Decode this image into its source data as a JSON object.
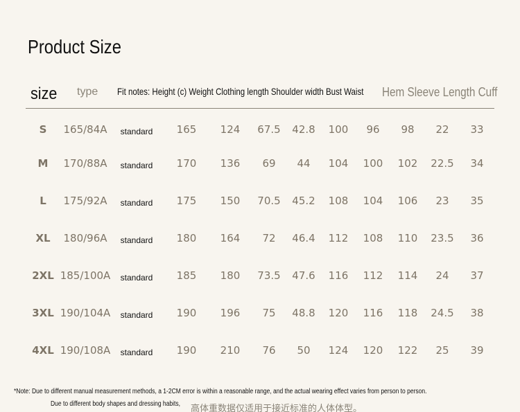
{
  "header": {
    "title": "Product Size"
  },
  "table": {
    "columns": [
      "size",
      "type",
      "Fit notes: Height (c) Weight Clothing length Shoulder width Bust Waist",
      "Hem Sleeve Length Cuff"
    ],
    "rows": [
      [
        "S",
        "165/84A",
        "standard",
        165,
        124,
        67.5,
        42.8,
        100,
        96,
        98,
        22,
        33
      ],
      [
        "M",
        "170/88A",
        "standard",
        170,
        136,
        69,
        44,
        104,
        100,
        102,
        22.5,
        34
      ],
      [
        "L",
        "175/92A",
        "standard",
        175,
        150,
        70.5,
        45.2,
        108,
        104,
        106,
        23,
        35
      ],
      [
        "XL",
        "180/96A",
        "standard",
        180,
        164,
        72,
        46.4,
        112,
        108,
        110,
        23.5,
        36
      ],
      [
        "2XL",
        "185/100A",
        "standard",
        185,
        180,
        73.5,
        47.6,
        116,
        112,
        114,
        24,
        37
      ],
      [
        "3XL",
        "190/104A",
        "standard",
        190,
        196,
        75,
        48.8,
        120,
        116,
        118,
        24.5,
        38
      ],
      [
        "4XL",
        "190/108A",
        "standard",
        190,
        210,
        76,
        50,
        124,
        120,
        122,
        25,
        39
      ]
    ]
  },
  "notes": [
    "*Note: Due to different manual measurement methods, a 1-2CM error is within a reasonable range, and the actual wearing effect varies from person to person.",
    "Due to different body shapes and dressing habits,",
    "高体重数据仅适用于接近标准的人体体型。"
  ]
}
